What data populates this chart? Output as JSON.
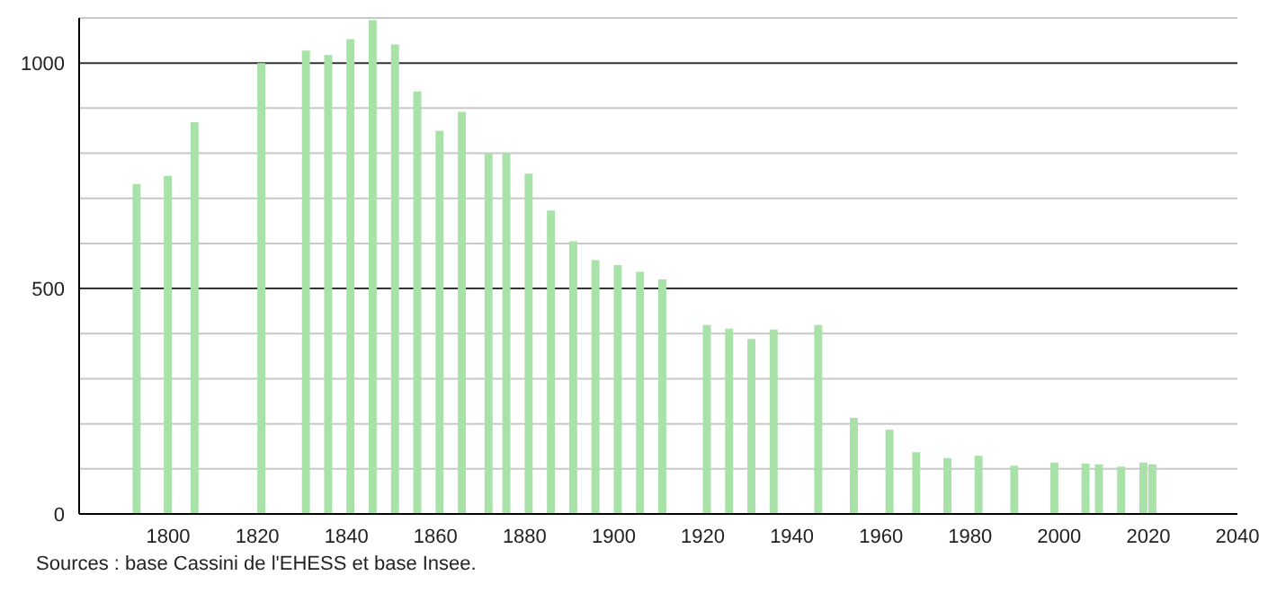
{
  "chart_data": {
    "type": "bar",
    "x": [
      1793,
      1800,
      1806,
      1821,
      1831,
      1836,
      1841,
      1846,
      1851,
      1856,
      1861,
      1866,
      1872,
      1876,
      1881,
      1886,
      1891,
      1896,
      1901,
      1906,
      1911,
      1921,
      1926,
      1931,
      1936,
      1946,
      1954,
      1962,
      1968,
      1975,
      1982,
      1990,
      1999,
      2006,
      2009,
      2014,
      2019,
      2021
    ],
    "values": [
      732,
      750,
      869,
      1000,
      1028,
      1018,
      1053,
      1095,
      1041,
      937,
      850,
      892,
      800,
      800,
      755,
      673,
      605,
      563,
      552,
      537,
      520,
      419,
      411,
      388,
      409,
      419,
      213,
      187,
      137,
      124,
      129,
      107,
      114,
      112,
      110,
      105,
      114,
      110
    ],
    "color": "#a8e2a8",
    "xlim": [
      1780,
      2040
    ],
    "xticks": [
      1800,
      1820,
      1840,
      1860,
      1880,
      1900,
      1920,
      1940,
      1960,
      1980,
      2000,
      2020,
      2040
    ],
    "ylim": [
      0,
      1100
    ],
    "yticks": [
      0,
      {
        "value": 100,
        "label": null
      },
      {
        "value": 200,
        "label": null
      },
      {
        "value": 300,
        "label": null
      },
      {
        "value": 400,
        "label": null
      },
      500,
      {
        "value": 600,
        "label": null
      },
      {
        "value": 700,
        "label": null
      },
      {
        "value": 800,
        "label": null
      },
      {
        "value": 900,
        "label": null
      },
      1000,
      {
        "value": 1100,
        "label": null
      }
    ],
    "grid": "y",
    "annotations": [
      "Sources : base Cassini de l'EHESS et base Insee."
    ]
  }
}
